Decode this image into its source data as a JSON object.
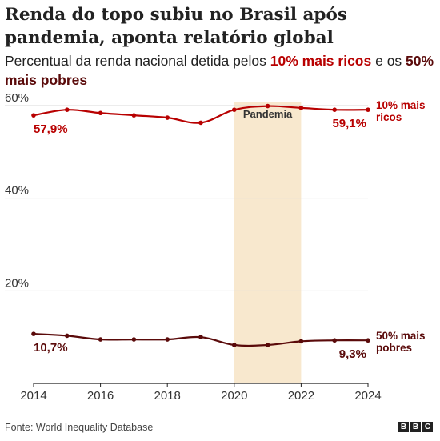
{
  "title": "Renda do topo subiu no Brasil após pandemia, aponta relatório global",
  "subtitle": {
    "prefix": "Percentual da renda nacional detida pelos ",
    "rich": "10% mais ricos",
    "middle": " e os ",
    "poor": "50% mais pobres"
  },
  "source": "Fonte: World Inequality Database",
  "logo_letters": [
    "B",
    "B",
    "C"
  ],
  "colors": {
    "rich": "#b80000",
    "poor": "#5a0a0a",
    "pandemic": "#f8e8ce",
    "grid": "#d9d9d9",
    "axis": "#222222"
  },
  "chart_data": {
    "type": "line",
    "x": [
      2014,
      2015,
      2016,
      2017,
      2018,
      2019,
      2020,
      2021,
      2022,
      2023,
      2024
    ],
    "xlim": [
      2014,
      2024
    ],
    "xticks": [
      2014,
      2016,
      2018,
      2020,
      2022,
      2024
    ],
    "ylim": [
      0,
      62
    ],
    "yticks": [
      {
        "value": 20,
        "label": "20%"
      },
      {
        "value": 40,
        "label": "40%"
      },
      {
        "value": 60,
        "label": "60%"
      }
    ],
    "grid": true,
    "shaded_region": {
      "from": 2020,
      "to": 2022,
      "label": "Pandemia"
    },
    "series": [
      {
        "key": "rich",
        "name": "10% mais ricos",
        "name_lines": [
          "10% mais",
          "ricos"
        ],
        "values": [
          57.9,
          59.1,
          58.4,
          57.9,
          57.4,
          56.3,
          59.1,
          59.9,
          59.5,
          59.1,
          59.1
        ],
        "labels": [
          {
            "index": 0,
            "text": "57,9%"
          },
          {
            "index": 10,
            "text": "59,1%"
          }
        ]
      },
      {
        "key": "poor",
        "name": "50% mais pobres",
        "name_lines": [
          "50% mais",
          "pobres"
        ],
        "values": [
          10.7,
          10.3,
          9.5,
          9.5,
          9.5,
          10.0,
          8.3,
          8.3,
          9.1,
          9.3,
          9.3
        ],
        "labels": [
          {
            "index": 0,
            "text": "10,7%"
          },
          {
            "index": 10,
            "text": "9,3%"
          }
        ]
      }
    ]
  }
}
